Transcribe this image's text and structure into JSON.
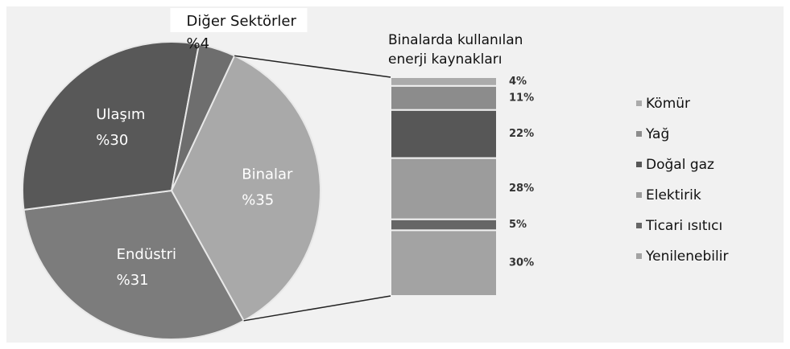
{
  "chart_data": [
    {
      "type": "pie",
      "categories": [
        "Binalar",
        "Endüstri",
        "Ulaşım",
        "Diğer Sektörler"
      ],
      "values": [
        35,
        31,
        30,
        4
      ],
      "value_labels": [
        "%35",
        "%31",
        "%30",
        "%4"
      ],
      "colors": [
        "#a9a9a9",
        "#7c7c7c",
        "#585858",
        "#6e6e6e"
      ]
    },
    {
      "type": "stacked_bar",
      "title": [
        "Binalarda kullanılan",
        "enerji kaynakları"
      ],
      "series": [
        {
          "name": "Kömür",
          "color": "#ababab",
          "values": [
            4
          ],
          "value_labels": [
            "4%"
          ]
        },
        {
          "name": "Yağ",
          "color": "#8c8c8c",
          "values": [
            11
          ],
          "value_labels": [
            "11%"
          ]
        },
        {
          "name": "Doğal gaz",
          "color": "#575757",
          "values": [
            22
          ],
          "value_labels": [
            "22%"
          ]
        },
        {
          "name": "Elektirik",
          "color": "#9c9c9c",
          "values": [
            28
          ],
          "value_labels": [
            "28%"
          ]
        },
        {
          "name": "Ticari ısıtıcı",
          "color": "#666666",
          "values": [
            5
          ],
          "value_labels": [
            "5%"
          ]
        },
        {
          "name": "Yenilenebilir",
          "color": "#a3a3a3",
          "values": [
            30
          ],
          "value_labels": [
            "30%"
          ]
        }
      ]
    }
  ]
}
